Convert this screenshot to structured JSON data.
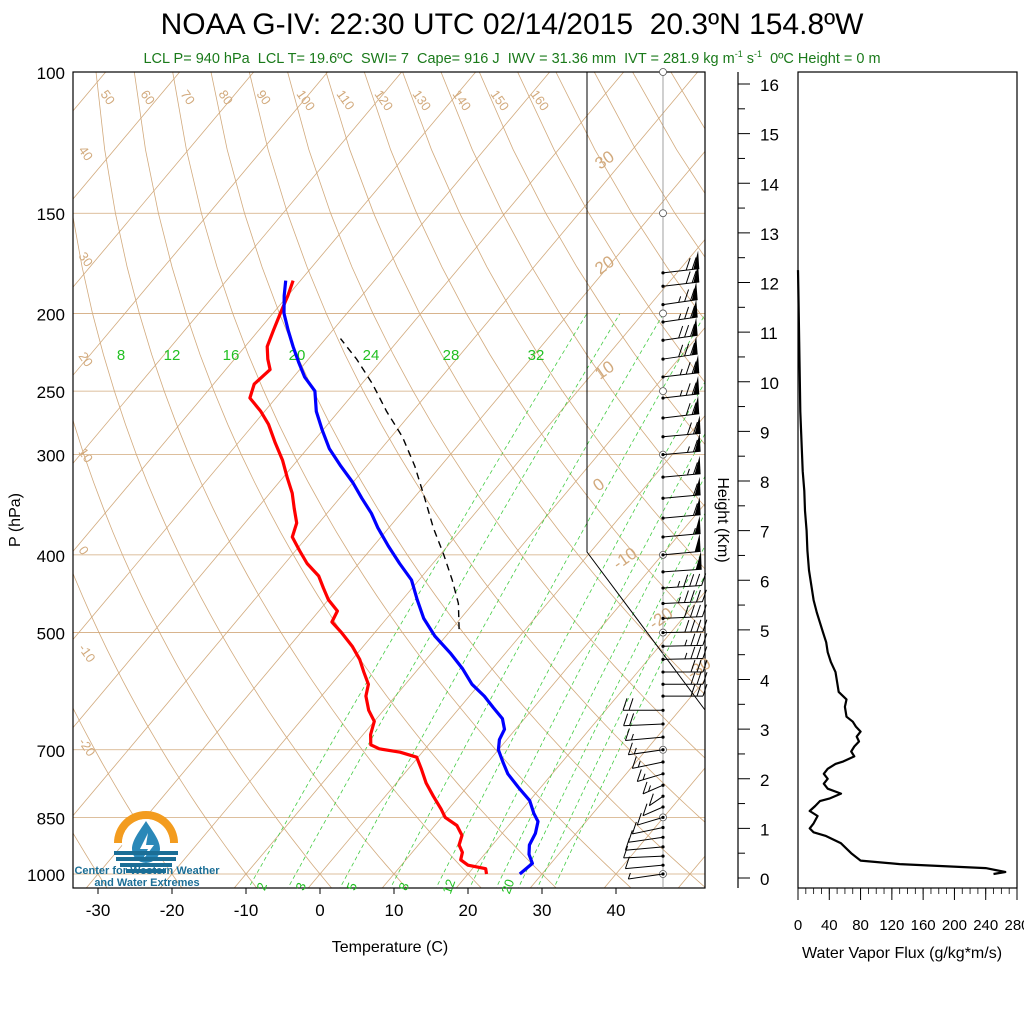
{
  "header": {
    "title": "NOAA G-IV: 22:30 UTC 02/14/2015  20.3ºN 154.8ºW",
    "subtitle_parts": [
      "LCL P= 940 hPa  LCL T= 19.6ºC  SWI= 7  Cape= 916 J  IWV = 31.36 mm  IVT = 281.9 kg m",
      "-1",
      " s",
      "-1",
      "  0ºC Height = 0 m"
    ]
  },
  "logo": {
    "line1": "Center for Western Weather",
    "line2": "and Water Extremes",
    "colors": {
      "sun": "#f39c1f",
      "drop": "#2a88b8",
      "water": "#1b6e96"
    }
  },
  "chart_data": [
    {
      "type": "line",
      "subtype": "skew-T log-P diagram",
      "xlabel": "Temperature (C)",
      "ylabel": "P (hPa)",
      "xlim": [
        -34,
        52
      ],
      "ylim": [
        1050,
        100
      ],
      "y_scale": "log",
      "x_ticks": [
        "-30",
        "-20",
        "-10",
        "0",
        "10",
        "20",
        "30",
        "40"
      ],
      "y_ticks": [
        "100",
        "150",
        "200",
        "250",
        "300",
        "400",
        "500",
        "700",
        "850",
        "1000"
      ],
      "isotherm_labels": [
        "-30",
        "-20",
        "-10",
        "0",
        "10",
        "20",
        "30",
        "40",
        "50",
        "60",
        "70",
        "80",
        "90",
        "100",
        "110",
        "120",
        "130",
        "140",
        "150",
        "160"
      ],
      "dry_adiabat_labels": [
        "40",
        "30",
        "20",
        "10",
        "0",
        "-10",
        "-20",
        "30",
        "20",
        "10",
        "0",
        "-10",
        "-20",
        "-30"
      ],
      "mixing_ratio_labels_top": [
        "8",
        "12",
        "16",
        "20",
        "24",
        "28",
        "32"
      ],
      "mixing_ratio_labels_bottom": [
        "2",
        "3",
        "5",
        "8",
        "12",
        "20"
      ],
      "colors": {
        "temperature": "#ff0000",
        "dewpoint": "#0000ff",
        "parcel": "#000000",
        "isotherms": "#d2aa7d",
        "mixing_ratio": "#44cc44"
      },
      "series": [
        {
          "name": "Temperature",
          "points": [
            [
              22.5,
              1000
            ],
            [
              21.8,
              985
            ],
            [
              19,
              975
            ],
            [
              17.4,
              960
            ],
            [
              16.8,
              940
            ],
            [
              15.5,
              920
            ],
            [
              14.8,
              895
            ],
            [
              13,
              870
            ],
            [
              10.5,
              850
            ],
            [
              9,
              830
            ],
            [
              6.5,
              800
            ],
            [
              4,
              770
            ],
            [
              1.8,
              740
            ],
            [
              -0.2,
              715
            ],
            [
              -3,
              705
            ],
            [
              -6.2,
              698
            ],
            [
              -7.8,
              690
            ],
            [
              -9,
              670
            ],
            [
              -10,
              645
            ],
            [
              -12,
              625
            ],
            [
              -14,
              600
            ],
            [
              -15,
              580
            ],
            [
              -17,
              560
            ],
            [
              -19,
              540
            ],
            [
              -21.5,
              520
            ],
            [
              -24.5,
              500
            ],
            [
              -27,
              485
            ],
            [
              -27.5,
              470
            ],
            [
              -30,
              455
            ],
            [
              -32,
              440
            ],
            [
              -34,
              425
            ],
            [
              -37,
              410
            ],
            [
              -39.5,
              395
            ],
            [
              -42,
              380
            ],
            [
              -43,
              365
            ],
            [
              -45,
              350
            ],
            [
              -47,
              335
            ],
            [
              -49.5,
              320
            ],
            [
              -52,
              305
            ],
            [
              -55,
              290
            ],
            [
              -58,
              275
            ],
            [
              -60.5,
              265
            ],
            [
              -63.5,
              255
            ],
            [
              -64.5,
              245
            ],
            [
              -64,
              235
            ],
            [
              -65.5,
              228
            ],
            [
              -67,
              220
            ],
            [
              -68,
              210
            ],
            [
              -69,
              200
            ],
            [
              -70,
              190
            ],
            [
              -71,
              182
            ]
          ]
        },
        {
          "name": "Dewpoint",
          "points": [
            [
              27,
              1000
            ],
            [
              27.5,
              970
            ],
            [
              26,
              945
            ],
            [
              25,
              920
            ],
            [
              24.5,
              890
            ],
            [
              23.5,
              860
            ],
            [
              22,
              840
            ],
            [
              20,
              810
            ],
            [
              17,
              780
            ],
            [
              14,
              750
            ],
            [
              12,
              725
            ],
            [
              10,
              700
            ],
            [
              9,
              680
            ],
            [
              8.5,
              660
            ],
            [
              7,
              640
            ],
            [
              4.5,
              620
            ],
            [
              2,
              600
            ],
            [
              -1,
              580
            ],
            [
              -4,
              555
            ],
            [
              -7.5,
              530
            ],
            [
              -11.5,
              505
            ],
            [
              -15,
              480
            ],
            [
              -18,
              455
            ],
            [
              -21,
              430
            ],
            [
              -24.5,
              410
            ],
            [
              -28,
              390
            ],
            [
              -31.5,
              370
            ],
            [
              -34,
              355
            ],
            [
              -37,
              340
            ],
            [
              -40,
              325
            ],
            [
              -43.5,
              310
            ],
            [
              -47,
              295
            ],
            [
              -50,
              280
            ],
            [
              -53,
              265
            ],
            [
              -55.5,
              250
            ],
            [
              -58.5,
              240
            ],
            [
              -61,
              230
            ],
            [
              -63.5,
              220
            ],
            [
              -66,
              210
            ],
            [
              -68.5,
              200
            ],
            [
              -70.5,
              190
            ],
            [
              -72,
              182
            ]
          ]
        },
        {
          "name": "Parcel",
          "points": [
            [
              -9,
              495
            ],
            [
              -12,
              460
            ],
            [
              -15.5,
              430
            ],
            [
              -19.5,
              400
            ],
            [
              -24,
              370
            ],
            [
              -28.5,
              340
            ],
            [
              -33.5,
              310
            ],
            [
              -38.5,
              285
            ],
            [
              -43.5,
              265
            ],
            [
              -48.5,
              245
            ],
            [
              -53.5,
              228
            ],
            [
              -58,
              215
            ]
          ]
        }
      ],
      "wind_barbs": [
        {
          "p": 1000,
          "dir": 60,
          "kt": 8
        },
        {
          "p": 975,
          "dir": 70,
          "kt": 10
        },
        {
          "p": 950,
          "dir": 80,
          "kt": 10
        },
        {
          "p": 925,
          "dir": 70,
          "kt": 12
        },
        {
          "p": 900,
          "dir": 60,
          "kt": 10
        },
        {
          "p": 875,
          "dir": 50,
          "kt": 10
        },
        {
          "p": 850,
          "dir": 40,
          "kt": 10
        },
        {
          "p": 825,
          "dir": 30,
          "kt": 12
        },
        {
          "p": 800,
          "dir": 20,
          "kt": 12
        },
        {
          "p": 775,
          "dir": 30,
          "kt": 15
        },
        {
          "p": 750,
          "dir": 40,
          "kt": 15
        },
        {
          "p": 725,
          "dir": 50,
          "kt": 15
        },
        {
          "p": 700,
          "dir": 60,
          "kt": 15
        },
        {
          "p": 675,
          "dir": 70,
          "kt": 15
        },
        {
          "p": 650,
          "dir": 80,
          "kt": 20
        },
        {
          "p": 625,
          "dir": 90,
          "kt": 20
        },
        {
          "p": 600,
          "dir": 270,
          "kt": 30
        },
        {
          "p": 580,
          "dir": 270,
          "kt": 30
        },
        {
          "p": 560,
          "dir": 270,
          "kt": 30
        },
        {
          "p": 540,
          "dir": 265,
          "kt": 35
        },
        {
          "p": 520,
          "dir": 265,
          "kt": 35
        },
        {
          "p": 500,
          "dir": 265,
          "kt": 40
        },
        {
          "p": 480,
          "dir": 260,
          "kt": 40
        },
        {
          "p": 460,
          "dir": 260,
          "kt": 45
        },
        {
          "p": 440,
          "dir": 255,
          "kt": 45
        },
        {
          "p": 420,
          "dir": 255,
          "kt": 50
        },
        {
          "p": 400,
          "dir": 250,
          "kt": 50
        },
        {
          "p": 380,
          "dir": 250,
          "kt": 55
        },
        {
          "p": 360,
          "dir": 250,
          "kt": 60
        },
        {
          "p": 340,
          "dir": 250,
          "kt": 60
        },
        {
          "p": 320,
          "dir": 250,
          "kt": 65
        },
        {
          "p": 300,
          "dir": 250,
          "kt": 65
        },
        {
          "p": 285,
          "dir": 250,
          "kt": 70
        },
        {
          "p": 270,
          "dir": 245,
          "kt": 70
        },
        {
          "p": 255,
          "dir": 245,
          "kt": 75
        },
        {
          "p": 240,
          "dir": 245,
          "kt": 75
        },
        {
          "p": 228,
          "dir": 240,
          "kt": 80
        },
        {
          "p": 216,
          "dir": 240,
          "kt": 80
        },
        {
          "p": 205,
          "dir": 240,
          "kt": 75
        },
        {
          "p": 195,
          "dir": 240,
          "kt": 75
        },
        {
          "p": 185,
          "dir": 245,
          "kt": 70
        },
        {
          "p": 178,
          "dir": 245,
          "kt": 70
        }
      ]
    },
    {
      "type": "line",
      "xlabel": "Water Vapor Flux (g/kg*m/s)",
      "ylabel": "Height (Km)",
      "xlim": [
        0,
        280
      ],
      "ylim": [
        -0.3,
        16.5
      ],
      "x_ticks": [
        "0",
        "40",
        "80",
        "120",
        "160",
        "200",
        "240",
        "280"
      ],
      "y_ticks": [
        "0",
        "1",
        "2",
        "3",
        "4",
        "5",
        "6",
        "7",
        "8",
        "9",
        "10",
        "11",
        "12",
        "13",
        "14",
        "15",
        "16"
      ],
      "series": [
        {
          "name": "",
          "points": [
            [
              250,
              0.08
            ],
            [
              265,
              0.12
            ],
            [
              240,
              0.2
            ],
            [
              130,
              0.28
            ],
            [
              80,
              0.35
            ],
            [
              68,
              0.5
            ],
            [
              55,
              0.7
            ],
            [
              35,
              0.85
            ],
            [
              20,
              0.92
            ],
            [
              15,
              1.0
            ],
            [
              20,
              1.1
            ],
            [
              25,
              1.25
            ],
            [
              15,
              1.35
            ],
            [
              22,
              1.45
            ],
            [
              28,
              1.55
            ],
            [
              40,
              1.6
            ],
            [
              55,
              1.7
            ],
            [
              38,
              1.8
            ],
            [
              33,
              1.9
            ],
            [
              38,
              2.0
            ],
            [
              33,
              2.1
            ],
            [
              38,
              2.2
            ],
            [
              48,
              2.3
            ],
            [
              58,
              2.35
            ],
            [
              72,
              2.45
            ],
            [
              68,
              2.55
            ],
            [
              72,
              2.65
            ],
            [
              78,
              2.75
            ],
            [
              75,
              2.85
            ],
            [
              80,
              2.95
            ],
            [
              74,
              3.05
            ],
            [
              70,
              3.15
            ],
            [
              62,
              3.25
            ],
            [
              60,
              3.45
            ],
            [
              62,
              3.6
            ],
            [
              52,
              3.75
            ],
            [
              50,
              3.95
            ],
            [
              48,
              4.15
            ],
            [
              42,
              4.35
            ],
            [
              38,
              4.55
            ],
            [
              36,
              4.75
            ],
            [
              32,
              4.95
            ],
            [
              28,
              5.15
            ],
            [
              24,
              5.35
            ],
            [
              20,
              5.6
            ],
            [
              17,
              5.9
            ],
            [
              14,
              6.2
            ],
            [
              12,
              6.6
            ],
            [
              11,
              7.0
            ],
            [
              9,
              7.4
            ],
            [
              8,
              7.8
            ],
            [
              6,
              8.2
            ],
            [
              5,
              8.6
            ],
            [
              4,
              9.0
            ],
            [
              3,
              9.4
            ],
            [
              2.5,
              9.8
            ],
            [
              2,
              10.3
            ],
            [
              1.5,
              10.8
            ],
            [
              1,
              11.3
            ],
            [
              0.5,
              11.8
            ],
            [
              0,
              12.25
            ]
          ]
        }
      ]
    }
  ]
}
